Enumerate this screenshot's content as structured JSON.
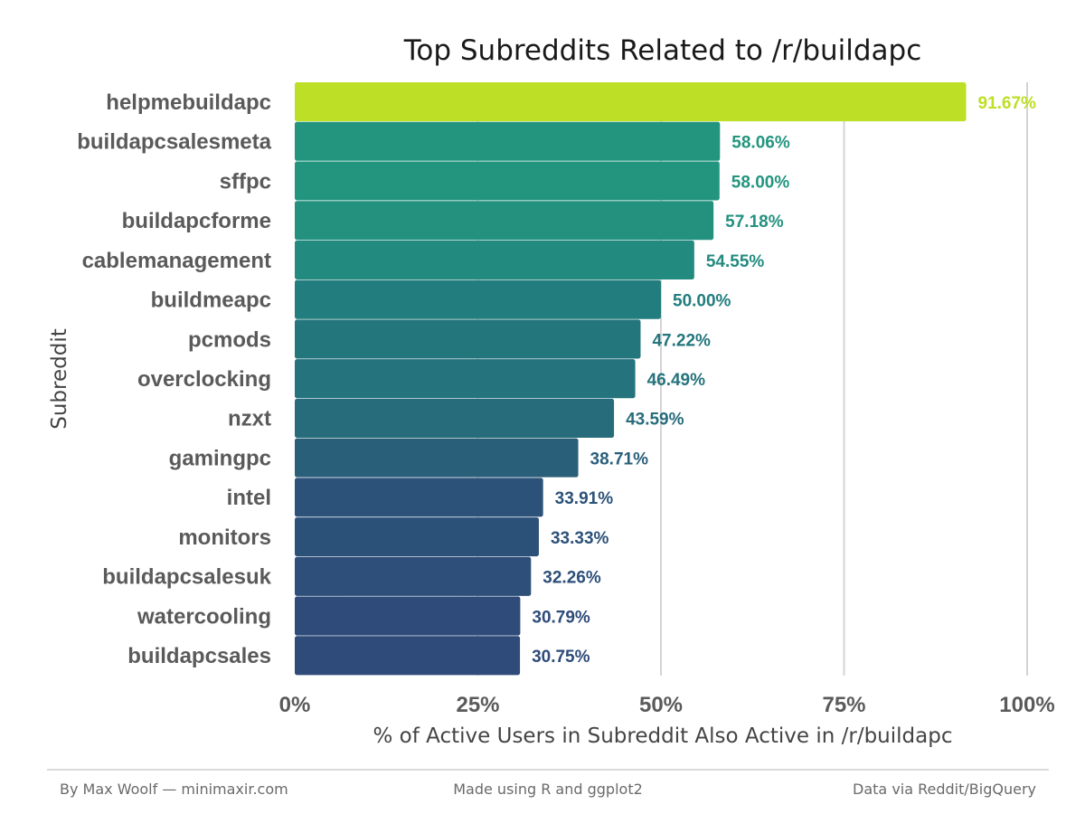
{
  "chart_data": {
    "type": "bar",
    "orientation": "horizontal",
    "title": "Top Subreddits Related to /r/buildapc",
    "xlabel": "% of Active Users in Subreddit Also Active in /r/buildapc",
    "ylabel": "Subreddit",
    "xlim": [
      0,
      100
    ],
    "x_ticks": [
      "0%",
      "25%",
      "50%",
      "75%",
      "100%"
    ],
    "x_tick_values": [
      0,
      25,
      50,
      75,
      100
    ],
    "grid": "vertical major",
    "categories": [
      "helpmebuildapc",
      "buildapcsalesmeta",
      "sffpc",
      "buildapcforme",
      "cablemanagement",
      "buildmeapc",
      "pcmods",
      "overclocking",
      "nzxt",
      "gamingpc",
      "intel",
      "monitors",
      "buildapcsalesuk",
      "watercooling",
      "buildapcsales"
    ],
    "values": [
      91.67,
      58.06,
      58.0,
      57.18,
      54.55,
      50.0,
      47.22,
      46.49,
      43.59,
      38.71,
      33.91,
      33.33,
      32.26,
      30.79,
      30.75
    ],
    "data_labels": [
      "91.67%",
      "58.06%",
      "58.00%",
      "57.18%",
      "54.55%",
      "50.00%",
      "47.22%",
      "46.49%",
      "43.59%",
      "38.71%",
      "33.91%",
      "33.33%",
      "32.26%",
      "30.79%",
      "30.75%"
    ],
    "colors": [
      "#bddf26",
      "#23957f",
      "#23957f",
      "#24917f",
      "#238a7f",
      "#227d7e",
      "#24767d",
      "#25737d",
      "#276c7b",
      "#2a5f7a",
      "#2c5279",
      "#2c5179",
      "#2d4f79",
      "#2e4b79",
      "#2e4b79"
    ],
    "legend": "none"
  },
  "footer": {
    "left": "By Max Woolf — minimaxir.com",
    "center": "Made using R and ggplot2",
    "right": "Data via Reddit/BigQuery"
  }
}
